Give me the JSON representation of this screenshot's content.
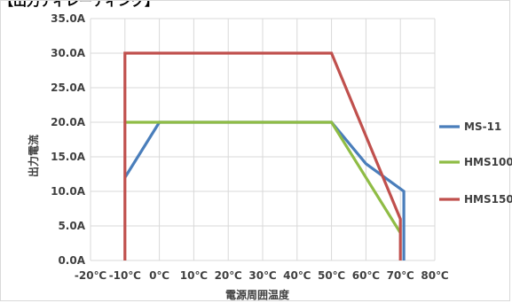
{
  "page": {
    "caption": "【出力ディレーティング】"
  },
  "chart_data": {
    "type": "line",
    "title": "",
    "xlabel": "電源周囲温度",
    "ylabel": "出力電流",
    "xlim": [
      -20,
      80
    ],
    "ylim": [
      0,
      35
    ],
    "x_ticks": [
      {
        "v": -20,
        "label": "-20℃"
      },
      {
        "v": -10,
        "label": "-10℃"
      },
      {
        "v": 0,
        "label": "0℃"
      },
      {
        "v": 10,
        "label": "10℃"
      },
      {
        "v": 20,
        "label": "20℃"
      },
      {
        "v": 30,
        "label": "30℃"
      },
      {
        "v": 40,
        "label": "40℃"
      },
      {
        "v": 50,
        "label": "50℃"
      },
      {
        "v": 60,
        "label": "60℃"
      },
      {
        "v": 70,
        "label": "70℃"
      },
      {
        "v": 80,
        "label": "80℃"
      }
    ],
    "y_ticks": [
      {
        "v": 0,
        "label": "0.0A"
      },
      {
        "v": 5,
        "label": "5.0A"
      },
      {
        "v": 10,
        "label": "10.0A"
      },
      {
        "v": 15,
        "label": "15.0A"
      },
      {
        "v": 20,
        "label": "20.0A"
      },
      {
        "v": 25,
        "label": "25.0A"
      },
      {
        "v": 30,
        "label": "30.0A"
      },
      {
        "v": 35,
        "label": "35.0A"
      }
    ],
    "grid": true,
    "legend_position": "right",
    "series": [
      {
        "name": "MS-11",
        "color": "#4a7ebb",
        "points": [
          [
            -10,
            12
          ],
          [
            0,
            20
          ],
          [
            50,
            20
          ],
          [
            60,
            14
          ],
          [
            71,
            10
          ],
          [
            71,
            0
          ]
        ]
      },
      {
        "name": "HMS100",
        "color": "#8fbc45",
        "points": [
          [
            -10,
            20
          ],
          [
            50,
            20
          ],
          [
            70,
            4
          ]
        ]
      },
      {
        "name": "HMS150",
        "color": "#c0504d",
        "points": [
          [
            -10,
            0
          ],
          [
            -10,
            30
          ],
          [
            50,
            30
          ],
          [
            70,
            6
          ],
          [
            70,
            0
          ]
        ]
      }
    ]
  }
}
